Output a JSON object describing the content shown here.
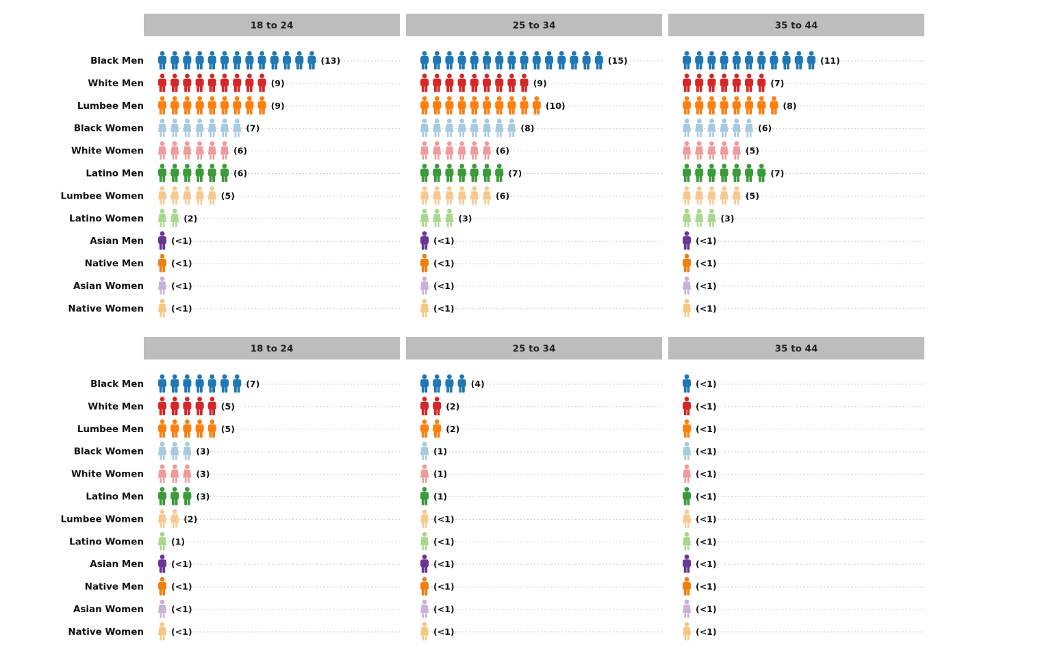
{
  "chart_data": {
    "type": "pictograph",
    "title": "",
    "colors": {
      "Black Men": "#1f77b4",
      "White Men": "#d62728",
      "Lumbee Men": "#ff7f0e",
      "Black Women": "#a6cadf",
      "White Women": "#f19a9a",
      "Latino Men": "#3a9b3a",
      "Lumbee Women": "#f8c98c",
      "Latino Women": "#a8d98b",
      "Asian Men": "#6b3594",
      "Native Men": "#f07f0e",
      "Asian Women": "#c8b2d8",
      "Native Women": "#f8c77f"
    },
    "categories": [
      "Black Men",
      "White Men",
      "Lumbee Men",
      "Black Women",
      "White Women",
      "Latino Men",
      "Lumbee Women",
      "Latino Women",
      "Asian Men",
      "Native Men",
      "Asian Women",
      "Native Women"
    ],
    "panels": [
      {
        "header": "18 to 24",
        "values": [
          13,
          9,
          9,
          7,
          6,
          6,
          5,
          2,
          "<1",
          "<1",
          "<1",
          "<1"
        ],
        "labels": [
          "(13)",
          "(9)",
          "(9)",
          "(7)",
          "(6)",
          "(6)",
          "(5)",
          "(2)",
          "(<1)",
          "(<1)",
          "(<1)",
          "(<1)"
        ]
      },
      {
        "header": "25 to 34",
        "values": [
          15,
          9,
          10,
          8,
          6,
          7,
          6,
          3,
          "<1",
          "<1",
          "<1",
          "<1"
        ],
        "labels": [
          "(15)",
          "(9)",
          "(10)",
          "(8)",
          "(6)",
          "(7)",
          "(6)",
          "(3)",
          "(<1)",
          "(<1)",
          "(<1)",
          "(<1)"
        ]
      },
      {
        "header": "35 to 44",
        "values": [
          11,
          7,
          8,
          6,
          5,
          7,
          5,
          3,
          "<1",
          "<1",
          "<1",
          "<1"
        ],
        "labels": [
          "(11)",
          "(7)",
          "(8)",
          "(6)",
          "(5)",
          "(7)",
          "(5)",
          "(3)",
          "(<1)",
          "(<1)",
          "(<1)",
          "(<1)"
        ]
      },
      {
        "header": "18 to 24",
        "values": [
          7,
          5,
          5,
          3,
          3,
          3,
          2,
          1,
          "<1",
          "<1",
          "<1",
          "<1"
        ],
        "labels": [
          "(7)",
          "(5)",
          "(5)",
          "(3)",
          "(3)",
          "(3)",
          "(2)",
          "(1)",
          "(<1)",
          "(<1)",
          "(<1)",
          "(<1)"
        ]
      },
      {
        "header": "25 to 34",
        "values": [
          4,
          2,
          2,
          1,
          1,
          1,
          "<1",
          "<1",
          "<1",
          "<1",
          "<1",
          "<1"
        ],
        "labels": [
          "(4)",
          "(2)",
          "(2)",
          "(1)",
          "(1)",
          "(1)",
          "(<1)",
          "(<1)",
          "(<1)",
          "(<1)",
          "(<1)",
          "(<1)"
        ]
      },
      {
        "header": "35 to 44",
        "values": [
          "<1",
          "<1",
          "<1",
          "<1",
          "<1",
          "<1",
          "<1",
          "<1",
          "<1",
          "<1",
          "<1",
          "<1"
        ],
        "labels": [
          "(<1)",
          "(<1)",
          "(<1)",
          "(<1)",
          "(<1)",
          "(<1)",
          "(<1)",
          "(<1)",
          "(<1)",
          "(<1)",
          "(<1)",
          "(<1)"
        ]
      }
    ]
  }
}
